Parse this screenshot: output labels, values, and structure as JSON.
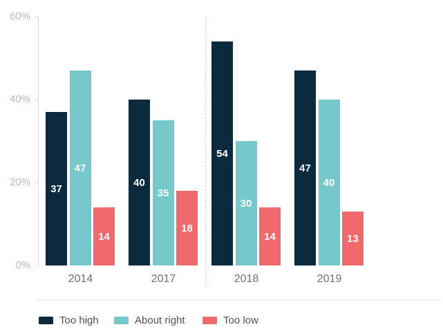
{
  "chart_data": {
    "type": "bar",
    "title": "",
    "categories": [
      "2014",
      "2017",
      "2018",
      "2019"
    ],
    "series": [
      {
        "name": "Too high",
        "color": "#0c2a3d",
        "values": [
          37,
          40,
          54,
          47
        ]
      },
      {
        "name": "About right",
        "color": "#76c8cb",
        "values": [
          47,
          35,
          30,
          40
        ]
      },
      {
        "name": "Too low",
        "color": "#f0696c",
        "values": [
          14,
          18,
          14,
          13
        ]
      }
    ],
    "yticks": [
      {
        "value": 0,
        "label": "0%"
      },
      {
        "value": 20,
        "label": "20%"
      },
      {
        "value": 40,
        "label": "40%"
      },
      {
        "value": 60,
        "label": "60%"
      }
    ],
    "ylim": [
      0,
      60
    ],
    "xlabel": "",
    "ylabel": "",
    "grid": false,
    "bar_labels": "inside-centered-white",
    "divider_between": [
      "2017",
      "2018"
    ],
    "legend_position": "bottom"
  },
  "colors": {
    "axis": "#d8dadb",
    "tick_label": "#b4b9bb",
    "x_label": "#6f7173",
    "dashed_divider": "#c6c8c9",
    "legend_text": "#515151",
    "legend_separator": "#e5e6e7",
    "background": "#ffffff"
  }
}
